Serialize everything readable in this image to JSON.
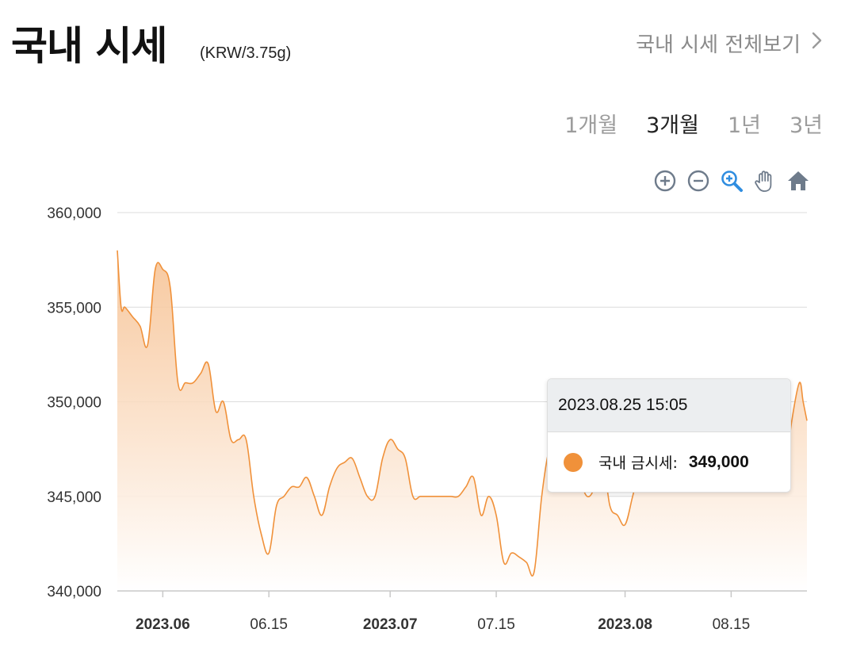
{
  "header": {
    "title": "국내 시세",
    "unit": "(KRW/3.75g)",
    "view_all_label": "국내 시세 전체보기",
    "view_all_icon": "chevron-right-icon"
  },
  "periods": [
    {
      "label": "1개월",
      "active": false
    },
    {
      "label": "3개월",
      "active": true
    },
    {
      "label": "1년",
      "active": false
    },
    {
      "label": "3년",
      "active": false
    }
  ],
  "toolbar": [
    "zoom-in-icon",
    "zoom-out-icon",
    "zoom-select-icon",
    "pan-hand-icon",
    "reset-home-icon"
  ],
  "colors": {
    "line": "#f0913a",
    "fill_top": "#f6bf8e",
    "fill_bottom": "#ffffff",
    "zoom_select_active": "#2f8de0",
    "toolbar_icon": "#6e7b8b",
    "grid": "#dcdcdc"
  },
  "tooltip": {
    "time": "2023.08.25 15:05",
    "series_name": "국내 금시세:",
    "value": "349,000"
  },
  "chart_data": {
    "type": "area",
    "title": "",
    "xlabel": "",
    "ylabel": "",
    "ylim": [
      340000,
      360000
    ],
    "yticks": [
      "360,000",
      "355,000",
      "350,000",
      "345,000",
      "340,000"
    ],
    "xticks": [
      {
        "label": "2023.06",
        "date": "2023-06-01",
        "bold": true
      },
      {
        "label": "06.15",
        "date": "2023-06-15",
        "bold": false
      },
      {
        "label": "2023.07",
        "date": "2023-07-01",
        "bold": true
      },
      {
        "label": "07.15",
        "date": "2023-07-15",
        "bold": false
      },
      {
        "label": "2023.08",
        "date": "2023-08-01",
        "bold": true
      },
      {
        "label": "08.15",
        "date": "2023-08-15",
        "bold": false
      }
    ],
    "grid": true,
    "series": [
      {
        "name": "국내 금시세",
        "points": [
          [
            "2023-05-26",
            358000
          ],
          [
            "2023-05-26 12:00",
            355000
          ],
          [
            "2023-05-27",
            355000
          ],
          [
            "2023-05-28",
            354500
          ],
          [
            "2023-05-29",
            354000
          ],
          [
            "2023-05-30",
            353000
          ],
          [
            "2023-05-31",
            357000
          ],
          [
            "2023-06-01",
            357000
          ],
          [
            "2023-06-02",
            356000
          ],
          [
            "2023-06-03",
            351000
          ],
          [
            "2023-06-04",
            351000
          ],
          [
            "2023-06-05",
            351000
          ],
          [
            "2023-06-06",
            351500
          ],
          [
            "2023-06-07",
            352000
          ],
          [
            "2023-06-08",
            349500
          ],
          [
            "2023-06-09",
            350000
          ],
          [
            "2023-06-10",
            348000
          ],
          [
            "2023-06-11",
            348000
          ],
          [
            "2023-06-12",
            348000
          ],
          [
            "2023-06-13",
            345000
          ],
          [
            "2023-06-14",
            343000
          ],
          [
            "2023-06-15",
            342000
          ],
          [
            "2023-06-16",
            344500
          ],
          [
            "2023-06-17",
            345000
          ],
          [
            "2023-06-18",
            345500
          ],
          [
            "2023-06-19",
            345500
          ],
          [
            "2023-06-20",
            346000
          ],
          [
            "2023-06-21",
            345000
          ],
          [
            "2023-06-22",
            344000
          ],
          [
            "2023-06-23",
            345500
          ],
          [
            "2023-06-24",
            346500
          ],
          [
            "2023-06-25",
            346800
          ],
          [
            "2023-06-26",
            347000
          ],
          [
            "2023-06-27",
            346000
          ],
          [
            "2023-06-28",
            345000
          ],
          [
            "2023-06-29",
            345000
          ],
          [
            "2023-06-30",
            347000
          ],
          [
            "2023-07-01",
            348000
          ],
          [
            "2023-07-02",
            347500
          ],
          [
            "2023-07-03",
            347000
          ],
          [
            "2023-07-04",
            345000
          ],
          [
            "2023-07-05",
            345000
          ],
          [
            "2023-07-06",
            345000
          ],
          [
            "2023-07-07",
            345000
          ],
          [
            "2023-07-08",
            345000
          ],
          [
            "2023-07-09",
            345000
          ],
          [
            "2023-07-10",
            345000
          ],
          [
            "2023-07-11",
            345500
          ],
          [
            "2023-07-12",
            346000
          ],
          [
            "2023-07-13",
            344000
          ],
          [
            "2023-07-14",
            345000
          ],
          [
            "2023-07-15",
            344000
          ],
          [
            "2023-07-16",
            341500
          ],
          [
            "2023-07-17",
            342000
          ],
          [
            "2023-07-18",
            341800
          ],
          [
            "2023-07-19",
            341500
          ],
          [
            "2023-07-20",
            341000
          ],
          [
            "2023-07-21",
            345000
          ],
          [
            "2023-07-22",
            347500
          ],
          [
            "2023-07-23",
            348000
          ],
          [
            "2023-07-24",
            348000
          ],
          [
            "2023-07-25",
            347500
          ],
          [
            "2023-07-26",
            346000
          ],
          [
            "2023-07-27",
            345000
          ],
          [
            "2023-07-28",
            345500
          ],
          [
            "2023-07-29",
            347000
          ],
          [
            "2023-07-30",
            344500
          ],
          [
            "2023-07-31",
            344000
          ],
          [
            "2023-08-01",
            343500
          ],
          [
            "2023-08-02",
            345000
          ],
          [
            "2023-08-03",
            346500
          ],
          [
            "2023-08-04",
            346000
          ],
          [
            "2023-08-05",
            346500
          ],
          [
            "2023-08-06",
            346000
          ],
          [
            "2023-08-07",
            346500
          ],
          [
            "2023-08-08",
            346500
          ],
          [
            "2023-08-09",
            346500
          ],
          [
            "2023-08-10",
            346500
          ],
          [
            "2023-08-11",
            346000
          ],
          [
            "2023-08-12",
            346500
          ],
          [
            "2023-08-13",
            346500
          ],
          [
            "2023-08-14",
            346500
          ],
          [
            "2023-08-15",
            346500
          ],
          [
            "2023-08-16",
            346000
          ],
          [
            "2023-08-17",
            346500
          ],
          [
            "2023-08-18",
            346500
          ],
          [
            "2023-08-19",
            346500
          ],
          [
            "2023-08-20",
            346500
          ],
          [
            "2023-08-21",
            346000
          ],
          [
            "2023-08-22",
            346000
          ],
          [
            "2023-08-23",
            349000
          ],
          [
            "2023-08-24",
            351000
          ],
          [
            "2023-08-24 12:00",
            350000
          ],
          [
            "2023-08-25",
            349000
          ]
        ]
      }
    ]
  }
}
